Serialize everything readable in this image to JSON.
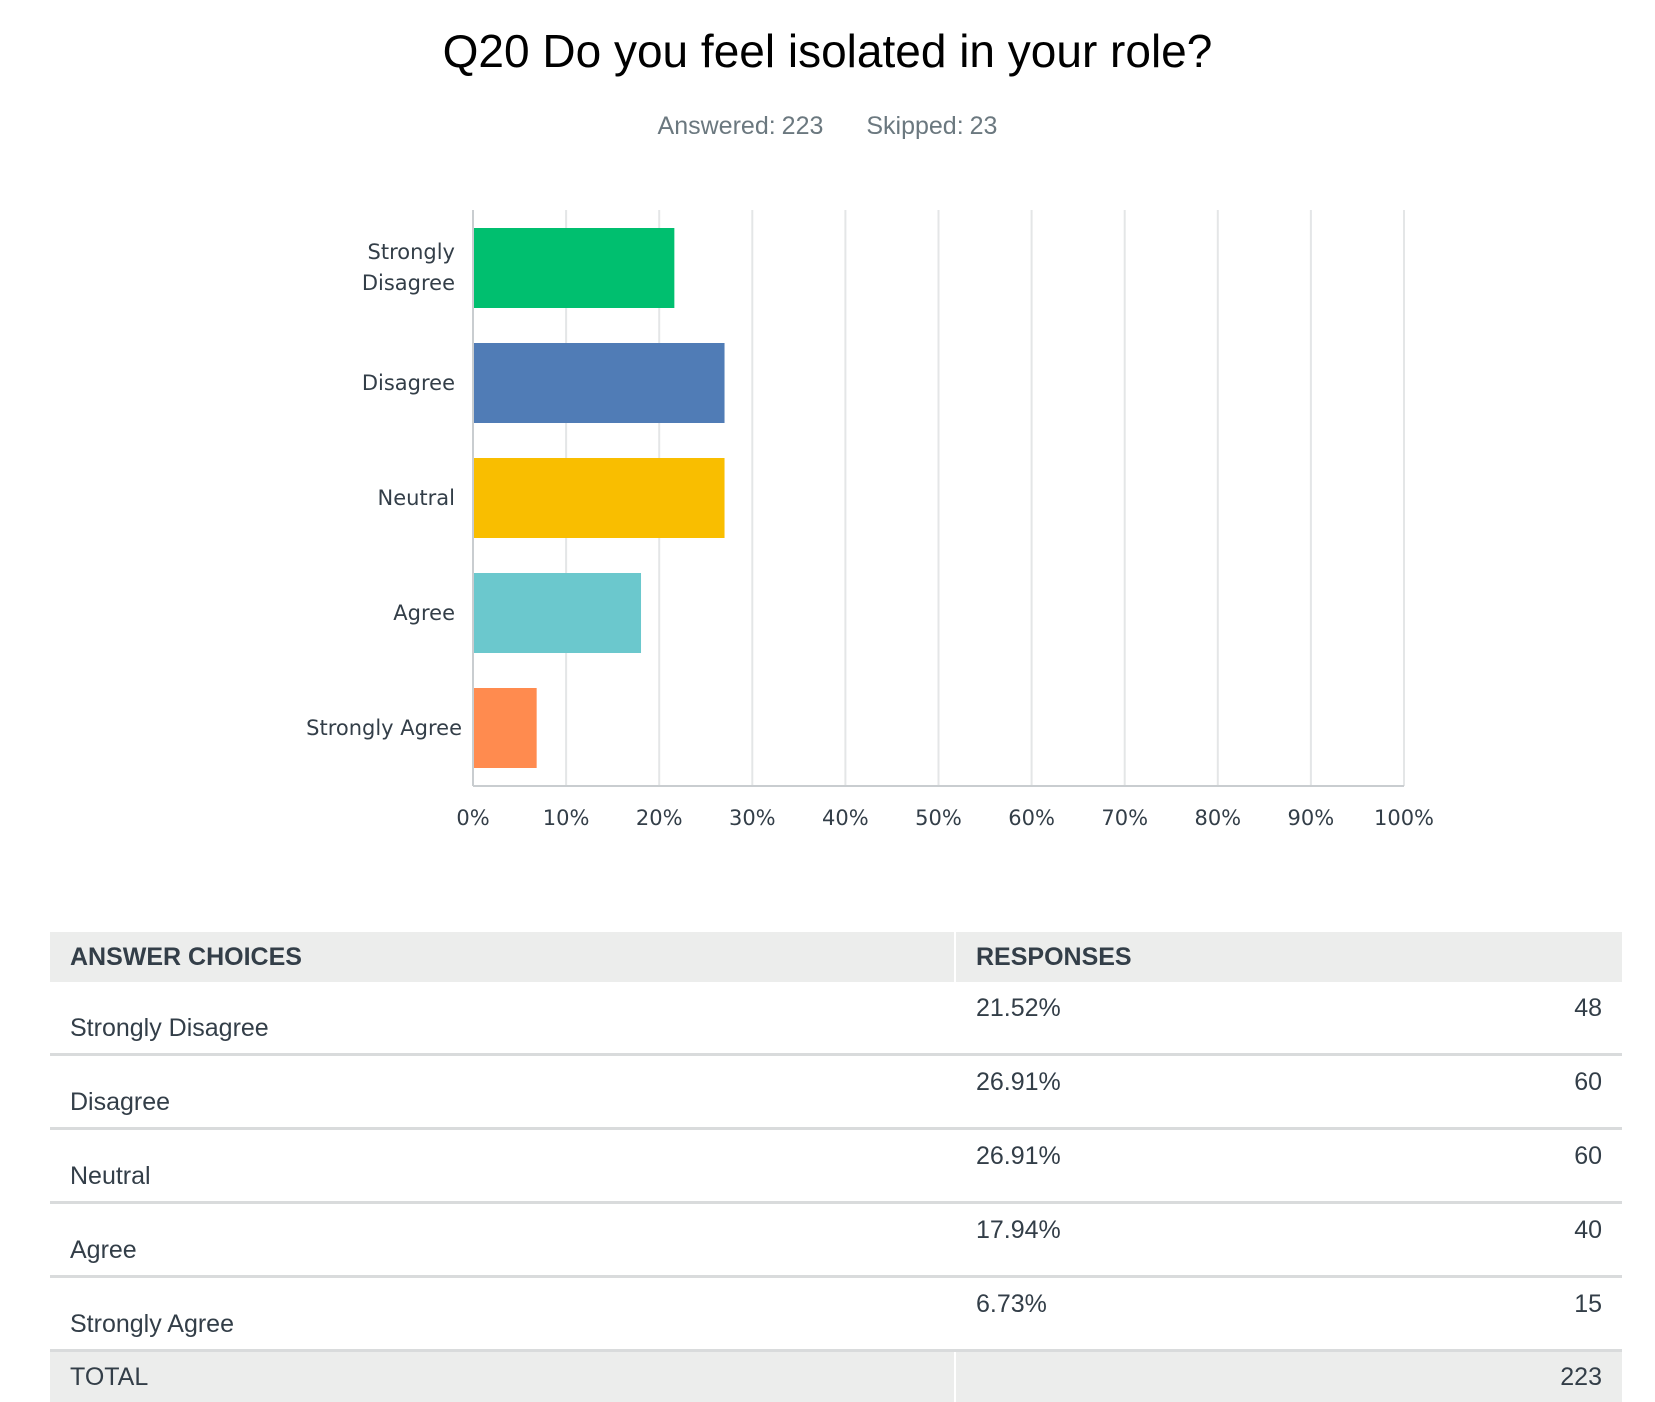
{
  "header": {
    "title": "Q20 Do you feel isolated in your role?",
    "answered_label": "Answered:",
    "answered_value": "223",
    "skipped_label": "Skipped:",
    "skipped_value": "23"
  },
  "chart_data": {
    "type": "bar",
    "orientation": "horizontal",
    "categories": [
      "Strongly Disagree",
      "Disagree",
      "Neutral",
      "Agree",
      "Strongly Agree"
    ],
    "values": [
      21.52,
      26.91,
      26.91,
      17.94,
      6.73
    ],
    "colors": [
      "#00bf6f",
      "#507cb6",
      "#f9be00",
      "#6bc8cd",
      "#ff8b4f"
    ],
    "xlim": [
      0,
      100
    ],
    "ticks": [
      "0%",
      "10%",
      "20%",
      "30%",
      "40%",
      "50%",
      "60%",
      "70%",
      "80%",
      "90%",
      "100%"
    ],
    "grid": true
  },
  "table": {
    "headers": [
      "ANSWER CHOICES",
      "RESPONSES"
    ],
    "rows": [
      {
        "choice": "Strongly Disagree",
        "percent": "21.52%",
        "count": "48"
      },
      {
        "choice": "Disagree",
        "percent": "26.91%",
        "count": "60"
      },
      {
        "choice": "Neutral",
        "percent": "26.91%",
        "count": "60"
      },
      {
        "choice": "Agree",
        "percent": "17.94%",
        "count": "40"
      },
      {
        "choice": "Strongly Agree",
        "percent": "6.73%",
        "count": "15"
      }
    ],
    "total_label": "TOTAL",
    "total_value": "223"
  }
}
